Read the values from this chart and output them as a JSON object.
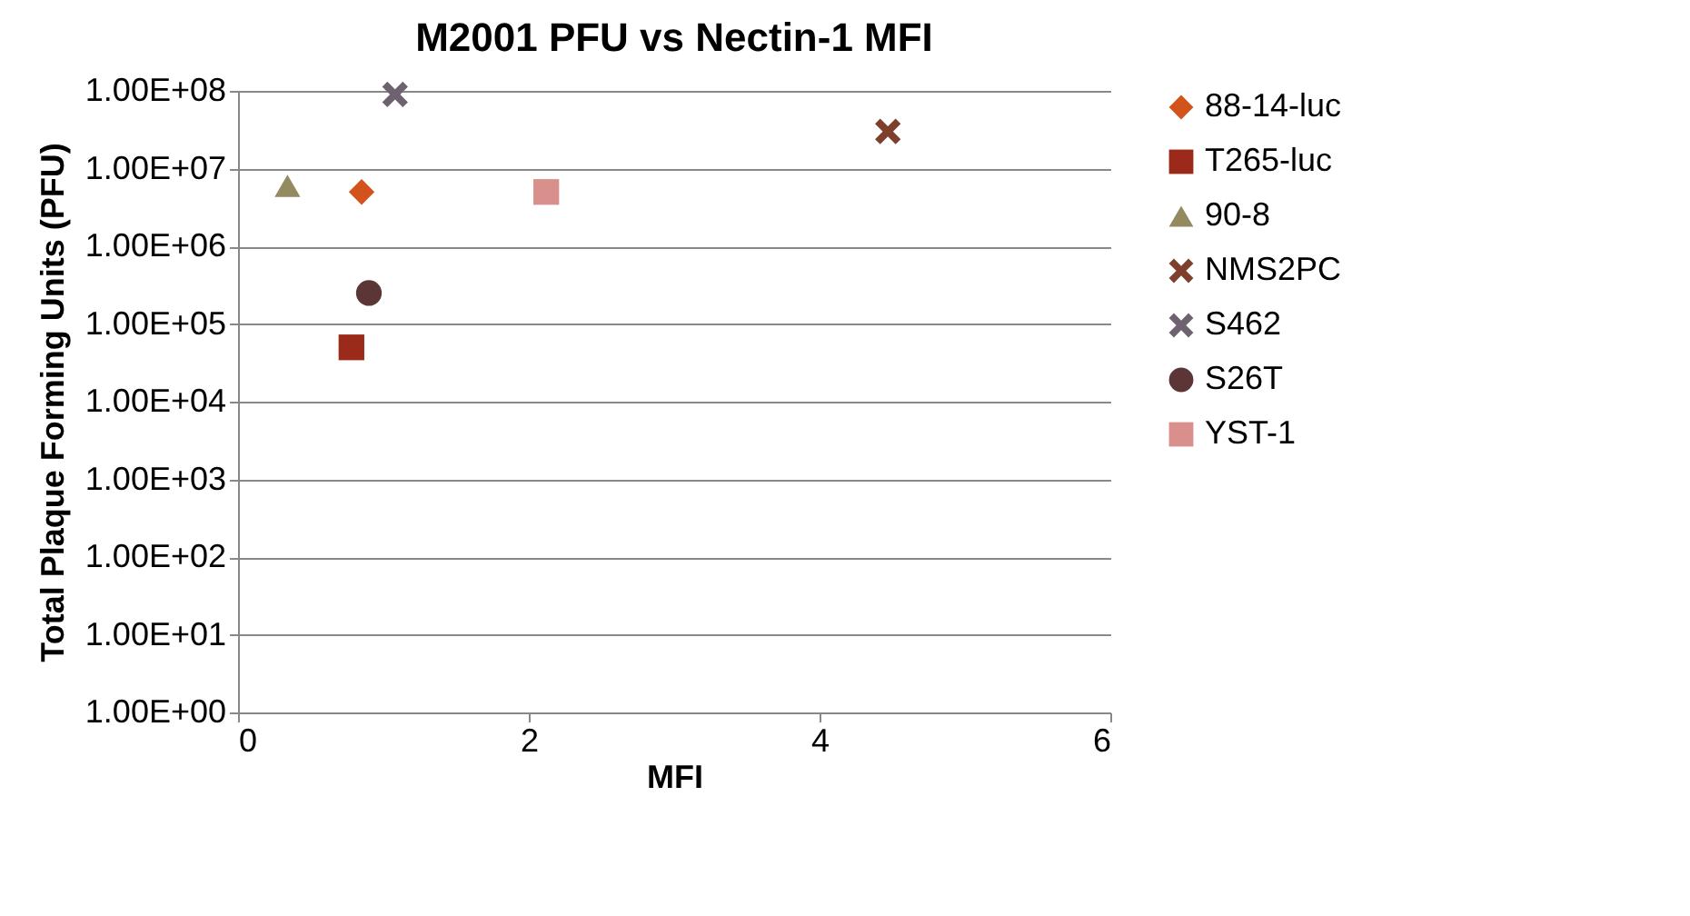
{
  "chart_data": {
    "type": "scatter",
    "title": "M2001 PFU vs Nectin-1 MFI",
    "xlabel": "MFI",
    "ylabel": "Total Plaque Forming Units (PFU)",
    "log": "y",
    "grid": "y",
    "legend": "right",
    "xlim": [
      0,
      6
    ],
    "xticks": [
      0,
      2,
      4,
      6
    ],
    "ylim": [
      1,
      100000000
    ],
    "yticks": [
      {
        "value": 1,
        "label": "1.00E+00"
      },
      {
        "value": 10,
        "label": "1.00E+01"
      },
      {
        "value": 100,
        "label": "1.00E+02"
      },
      {
        "value": 1000,
        "label": "1.00E+03"
      },
      {
        "value": 10000,
        "label": "1.00E+04"
      },
      {
        "value": 100000,
        "label": "1.00E+05"
      },
      {
        "value": 1000000,
        "label": "1.00E+06"
      },
      {
        "value": 10000000,
        "label": "1.00E+07"
      },
      {
        "value": 100000000,
        "label": "1.00E+08"
      }
    ],
    "series": [
      {
        "name": "88-14-luc",
        "color": "#d2541c",
        "marker": "diamond",
        "x": [
          0.85
        ],
        "values": [
          5000000
        ]
      },
      {
        "name": "T265-luc",
        "color": "#9c2a1a",
        "marker": "square",
        "x": [
          0.78
        ],
        "values": [
          50000
        ]
      },
      {
        "name": "90-8",
        "color": "#948a60",
        "marker": "triangle",
        "x": [
          0.34
        ],
        "values": [
          6000000
        ]
      },
      {
        "name": "NMS2PC",
        "color": "#7e3f2c",
        "marker": "cross",
        "x": [
          4.47
        ],
        "values": [
          30000000
        ]
      },
      {
        "name": "S462",
        "color": "#6f6270",
        "marker": "cross",
        "x": [
          1.08
        ],
        "values": [
          90000000
        ]
      },
      {
        "name": "S26T",
        "color": "#5c3636",
        "marker": "circle",
        "x": [
          0.9
        ],
        "values": [
          250000
        ]
      },
      {
        "name": "YST-1",
        "color": "#d9908c",
        "marker": "square",
        "x": [
          2.12
        ],
        "values": [
          5000000
        ]
      }
    ]
  }
}
